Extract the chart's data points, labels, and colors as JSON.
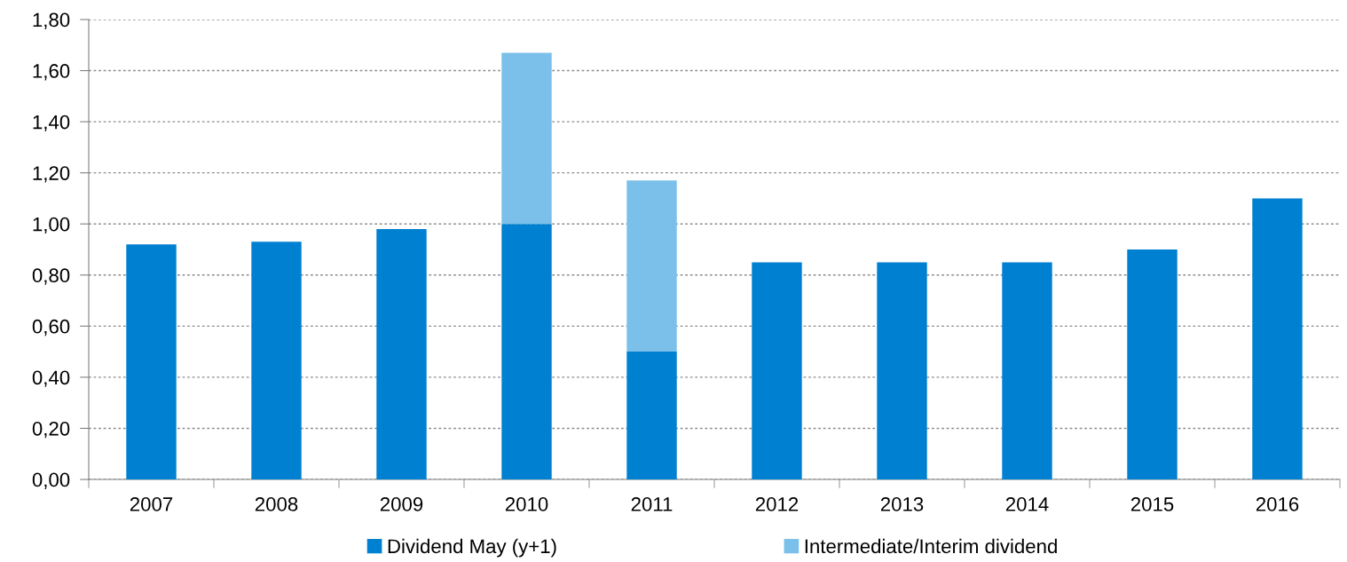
{
  "chart_data": {
    "type": "bar",
    "stacked": true,
    "categories": [
      "2007",
      "2008",
      "2009",
      "2010",
      "2011",
      "2012",
      "2013",
      "2014",
      "2015",
      "2016"
    ],
    "series": [
      {
        "name": "Dividend May (y+1)",
        "color": "#0080d0",
        "values": [
          0.92,
          0.93,
          0.98,
          1.0,
          0.5,
          0.85,
          0.85,
          0.85,
          0.9,
          1.1
        ]
      },
      {
        "name": "Intermediate/Interim dividend",
        "color": "#7ac0ea",
        "values": [
          null,
          null,
          null,
          0.67,
          0.67,
          null,
          null,
          null,
          null,
          null
        ]
      }
    ],
    "ylim": [
      0,
      1.8
    ],
    "yticks": [
      {
        "value": 0,
        "label": "0,00"
      },
      {
        "value": 0.2,
        "label": "0,20"
      },
      {
        "value": 0.4,
        "label": "0,40"
      },
      {
        "value": 0.6,
        "label": "0,60"
      },
      {
        "value": 0.8,
        "label": "0,80"
      },
      {
        "value": 1.0,
        "label": "1,00"
      },
      {
        "value": 1.2,
        "label": "1,20"
      },
      {
        "value": 1.4,
        "label": "1,40"
      },
      {
        "value": 1.6,
        "label": "1,60"
      },
      {
        "value": 1.8,
        "label": "1,80"
      }
    ],
    "grid": "y",
    "legend": "bottom"
  }
}
